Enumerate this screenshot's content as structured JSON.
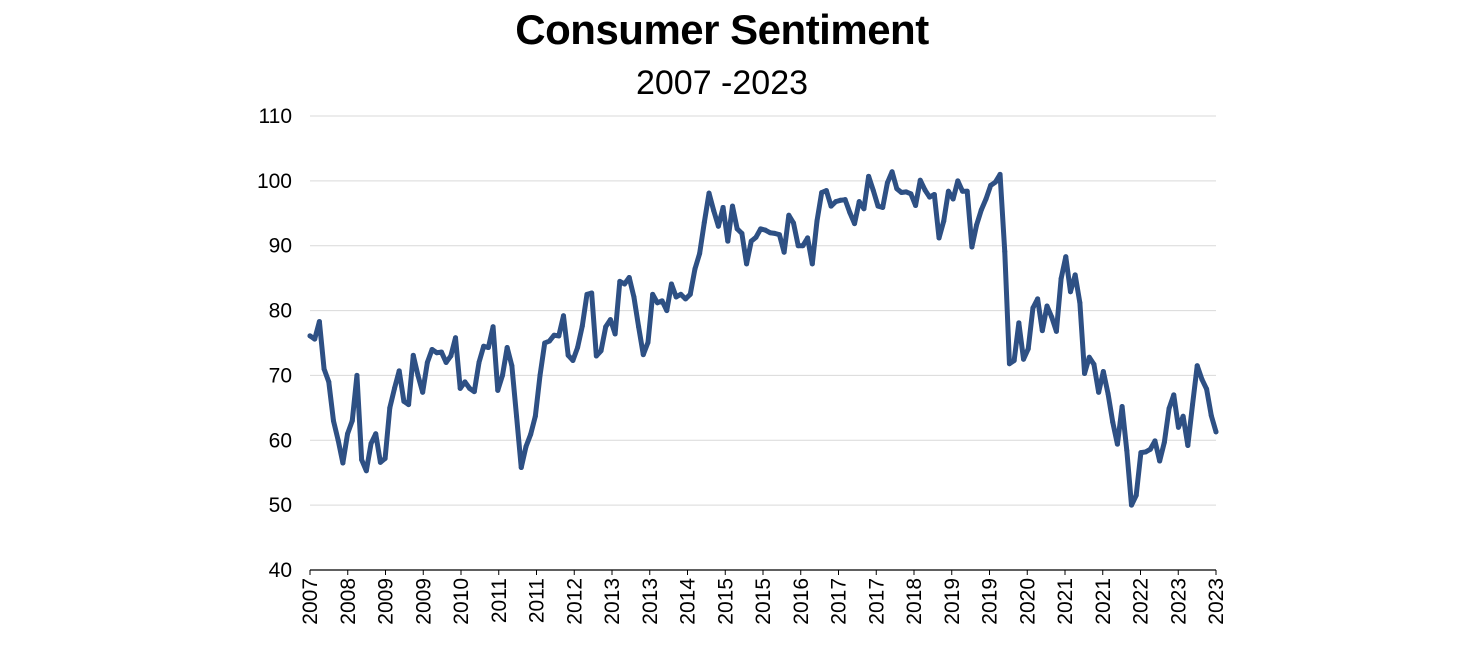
{
  "chart_data": {
    "type": "line",
    "title": "Consumer Sentiment",
    "subtitle": "2007 -2023",
    "xlabel": "",
    "ylabel": "",
    "ylim": [
      40,
      110
    ],
    "yticks": [
      40,
      50,
      60,
      70,
      80,
      90,
      100,
      110
    ],
    "grid": "horizontal",
    "colors": {
      "line": "#2e5084",
      "grid": "#d9d9d9",
      "axis": "#000000"
    },
    "x_tick_labels": [
      "2007",
      "2008",
      "2009",
      "2009",
      "2010",
      "2011",
      "2011",
      "2012",
      "2013",
      "2013",
      "2014",
      "2015",
      "2015",
      "2016",
      "2017",
      "2017",
      "2018",
      "2019",
      "2019",
      "2020",
      "2021",
      "2021",
      "2022",
      "2023",
      "2023"
    ],
    "series": [
      {
        "values": [
          76.1,
          75.6,
          78.3,
          71,
          69,
          63,
          60,
          56.5,
          61,
          63,
          70,
          57,
          55.3,
          59.5,
          61,
          56.6,
          57.2,
          65,
          68,
          70.7,
          66,
          65.5,
          73.1,
          70,
          67.4,
          72,
          74,
          73.5,
          73.6,
          72,
          73,
          75.8,
          68,
          69,
          68,
          67.5,
          72,
          74.5,
          74.3,
          77.5,
          67.7,
          70,
          74.3,
          71.5,
          63.7,
          55.8,
          59,
          60.9,
          63.7,
          70,
          75,
          75.3,
          76.2,
          76.1,
          79.2,
          73.1,
          72.3,
          74.3,
          77.6,
          82.5,
          82.7,
          73,
          73.8,
          77.5,
          78.6,
          76.4,
          84.5,
          84.1,
          85.1,
          82.1,
          77.5,
          73.2,
          75.1,
          82.5,
          81.2,
          81.5,
          80,
          84.1,
          82.1,
          82.5,
          81.8,
          82.5,
          86.4,
          88.8,
          93.6,
          98.1,
          95.4,
          93,
          95.9,
          90.7,
          96.1,
          92.6,
          91.9,
          87.2,
          90.7,
          91.3,
          92.6,
          92.4,
          92,
          91.9,
          91.7,
          89,
          94.7,
          93.5,
          90,
          90,
          91.2,
          87.2,
          93.8,
          98.2,
          98.5,
          96.1,
          96.8,
          97,
          97.1,
          95.1,
          93.4,
          96.8,
          95.7,
          100.7,
          98.5,
          96.1,
          95.9,
          99.7,
          101.4,
          98.8,
          98.2,
          98.3,
          98,
          96.2,
          100.1,
          98.6,
          97.5,
          97.9,
          91.2,
          93.8,
          98.4,
          97.2,
          100,
          98.4,
          98.4,
          89.8,
          93.2,
          95.5,
          97.2,
          99.3,
          99.8,
          101,
          89.1,
          71.8,
          72.3,
          78.1,
          72.5,
          74.1,
          80.4,
          81.8,
          76.9,
          80.7,
          79,
          76.8,
          84.9,
          88.3,
          82.9,
          85.5,
          81.2,
          70.3,
          72.8,
          71.7,
          67.4,
          70.6,
          67.2,
          62.8,
          59.4,
          65.2,
          58.4,
          50,
          51.5,
          58.1,
          58.2,
          58.6,
          59.9,
          56.8,
          59.7,
          64.9,
          67,
          62,
          63.7,
          59.2,
          65.5,
          71.5,
          69.4,
          67.9,
          63.8,
          61.3
        ]
      }
    ]
  }
}
